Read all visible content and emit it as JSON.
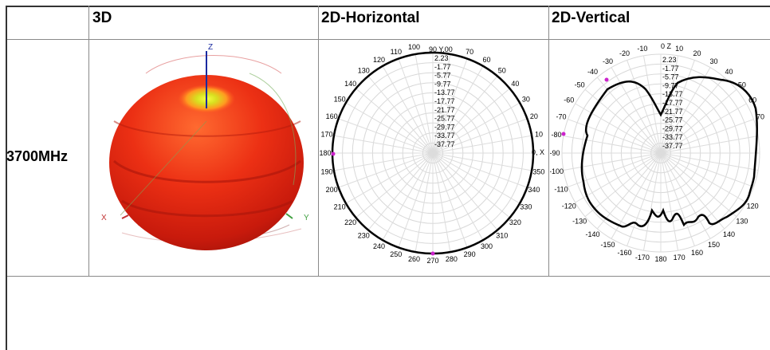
{
  "table": {
    "headers": [
      "",
      "3D",
      "2D-Horizontal",
      "2D-Vertical"
    ],
    "row_label": "3700MHz"
  },
  "polar_common": {
    "rings": [
      "2.23",
      "-1.77",
      "-5.77",
      "-9.77",
      "-13.77",
      "-17.77",
      "-21.77",
      "-25.77",
      "-29.77",
      "-33.77",
      "-37.77"
    ]
  },
  "plot_3d": {
    "axis_z": "Z",
    "axis_x": "X",
    "axis_y": "Y",
    "colors": {
      "body": "#e02210",
      "hot": "#f0e020",
      "axis": "#1a2aa0"
    }
  },
  "horizontal": {
    "top_label": "90 Y,00",
    "right_label": "0, X",
    "angles": [
      {
        "t": "100",
        "a": 100
      },
      {
        "t": "110",
        "a": 110
      },
      {
        "t": "120",
        "a": 120
      },
      {
        "t": "130",
        "a": 130
      },
      {
        "t": "140",
        "a": 140
      },
      {
        "t": "150",
        "a": 150
      },
      {
        "t": "160",
        "a": 160
      },
      {
        "t": "170",
        "a": 170
      },
      {
        "t": "180",
        "a": 180
      },
      {
        "t": "190",
        "a": 190
      },
      {
        "t": "200",
        "a": 200
      },
      {
        "t": "210",
        "a": 210
      },
      {
        "t": "220",
        "a": 220
      },
      {
        "t": "230",
        "a": 230
      },
      {
        "t": "240",
        "a": 240
      },
      {
        "t": "250",
        "a": 250
      },
      {
        "t": "260",
        "a": 260
      },
      {
        "t": "270",
        "a": 270
      },
      {
        "t": "280",
        "a": 280
      },
      {
        "t": "290",
        "a": 290
      },
      {
        "t": "300",
        "a": 300
      },
      {
        "t": "310",
        "a": 310
      },
      {
        "t": "320",
        "a": 320
      },
      {
        "t": "330",
        "a": 330
      },
      {
        "t": "340",
        "a": 340
      },
      {
        "t": "350",
        "a": 350
      },
      {
        "t": "10",
        "a": 10
      },
      {
        "t": "20",
        "a": 20
      },
      {
        "t": "30",
        "a": 30
      },
      {
        "t": "40",
        "a": 40
      },
      {
        "t": "50",
        "a": 50
      },
      {
        "t": "60",
        "a": 60
      },
      {
        "t": "70",
        "a": 70
      }
    ]
  },
  "vertical": {
    "top_label": "0 Z",
    "angles": [
      {
        "t": "10",
        "a": 10
      },
      {
        "t": "20",
        "a": 20
      },
      {
        "t": "30",
        "a": 30
      },
      {
        "t": "40",
        "a": 40
      },
      {
        "t": "50",
        "a": 50
      },
      {
        "t": "60",
        "a": 60
      },
      {
        "t": "70",
        "a": 70
      },
      {
        "t": "120",
        "a": 120
      },
      {
        "t": "130",
        "a": 130
      },
      {
        "t": "140",
        "a": 140
      },
      {
        "t": "150",
        "a": 150
      },
      {
        "t": "160",
        "a": 160
      },
      {
        "t": "170",
        "a": 170
      },
      {
        "t": "180",
        "a": 180
      },
      {
        "t": "-170",
        "a": -170
      },
      {
        "t": "-160",
        "a": -160
      },
      {
        "t": "-150",
        "a": -150
      },
      {
        "t": "-140",
        "a": -140
      },
      {
        "t": "-130",
        "a": -130
      },
      {
        "t": "-120",
        "a": -120
      },
      {
        "t": "-110",
        "a": -110
      },
      {
        "t": "-100",
        "a": -100
      },
      {
        "t": "-90",
        "a": -90
      },
      {
        "t": "-80",
        "a": -80
      },
      {
        "t": "-70",
        "a": -70
      },
      {
        "t": "-60",
        "a": -60
      },
      {
        "t": "-50",
        "a": -50
      },
      {
        "t": "-40",
        "a": -40
      },
      {
        "t": "-30",
        "a": -30
      },
      {
        "t": "-20",
        "a": -20
      },
      {
        "t": "-10",
        "a": -10
      }
    ]
  }
}
